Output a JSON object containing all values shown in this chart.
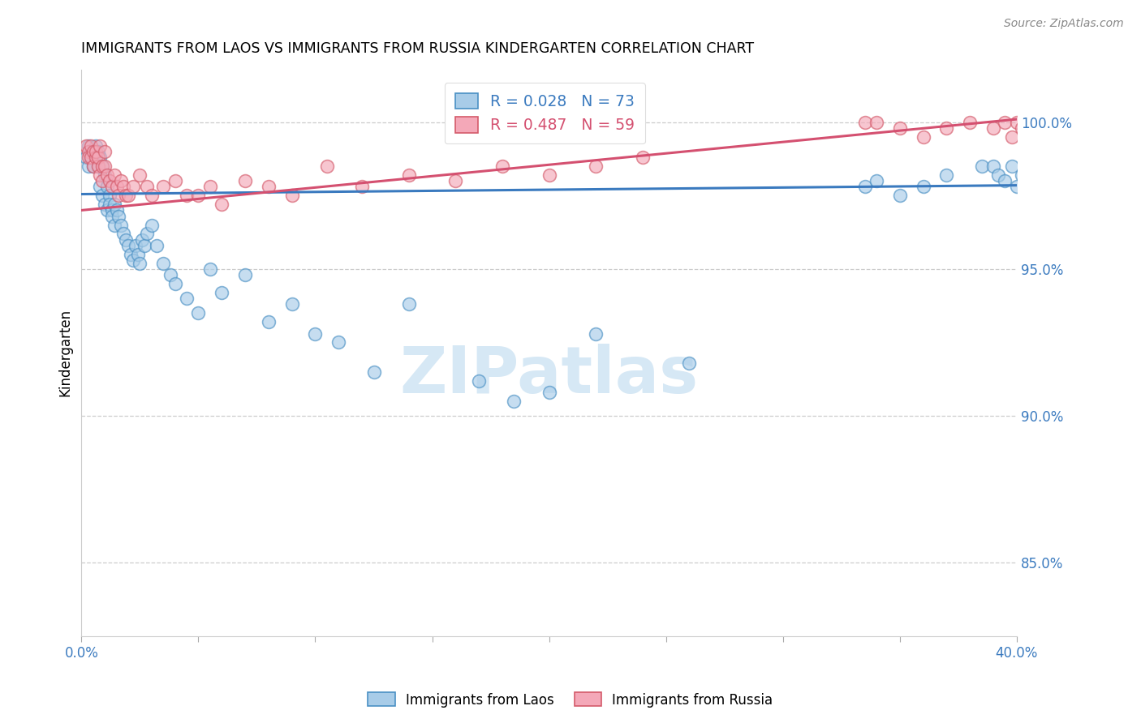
{
  "title": "IMMIGRANTS FROM LAOS VS IMMIGRANTS FROM RUSSIA KINDERGARTEN CORRELATION CHART",
  "source_text": "Source: ZipAtlas.com",
  "ylabel": "Kindergarten",
  "yticks": [
    85.0,
    90.0,
    95.0,
    100.0
  ],
  "ytick_labels": [
    "85.0%",
    "90.0%",
    "95.0%",
    "100.0%"
  ],
  "xlim": [
    0.0,
    40.0
  ],
  "ylim": [
    82.5,
    101.8
  ],
  "color_laos_fill": "#a8cce8",
  "color_laos_edge": "#4a90c4",
  "color_russia_fill": "#f4a8b8",
  "color_russia_edge": "#d45a6a",
  "color_laos_line": "#3a7abf",
  "color_russia_line": "#d45070",
  "watermark_color": "#d6e8f5",
  "legend_labels": [
    "R = 0.028   N = 73",
    "R = 0.487   N = 59"
  ],
  "legend_label_colors": [
    "#3a7abf",
    "#d45070"
  ],
  "bottom_legend": [
    "Immigrants from Laos",
    "Immigrants from Russia"
  ],
  "laos_trend": [
    97.55,
    97.85
  ],
  "russia_trend": [
    97.0,
    100.1
  ],
  "laos_x": [
    0.2,
    0.3,
    0.3,
    0.4,
    0.4,
    0.5,
    0.5,
    0.6,
    0.6,
    0.7,
    0.7,
    0.8,
    0.8,
    0.9,
    0.9,
    1.0,
    1.0,
    1.1,
    1.1,
    1.2,
    1.2,
    1.3,
    1.3,
    1.4,
    1.4,
    1.5,
    1.6,
    1.7,
    1.8,
    1.9,
    2.0,
    2.1,
    2.2,
    2.3,
    2.4,
    2.5,
    2.6,
    2.7,
    2.8,
    3.0,
    3.2,
    3.5,
    3.8,
    4.0,
    4.5,
    5.0,
    5.5,
    6.0,
    7.0,
    8.0,
    9.0,
    10.0,
    11.0,
    12.5,
    14.0,
    17.0,
    18.5,
    20.0,
    22.0,
    26.0,
    33.5,
    34.0,
    35.0,
    36.0,
    37.0,
    38.5,
    39.0,
    39.2,
    39.5,
    39.8,
    40.0,
    40.2,
    40.5
  ],
  "laos_y": [
    98.8,
    99.2,
    98.5,
    98.8,
    99.0,
    99.0,
    98.5,
    98.8,
    99.2,
    98.5,
    99.0,
    98.8,
    97.8,
    98.5,
    97.5,
    98.2,
    97.2,
    97.8,
    97.0,
    97.5,
    97.2,
    97.0,
    96.8,
    97.2,
    96.5,
    97.0,
    96.8,
    96.5,
    96.2,
    96.0,
    95.8,
    95.5,
    95.3,
    95.8,
    95.5,
    95.2,
    96.0,
    95.8,
    96.2,
    96.5,
    95.8,
    95.2,
    94.8,
    94.5,
    94.0,
    93.5,
    95.0,
    94.2,
    94.8,
    93.2,
    93.8,
    92.8,
    92.5,
    91.5,
    93.8,
    91.2,
    90.5,
    90.8,
    92.8,
    91.8,
    97.8,
    98.0,
    97.5,
    97.8,
    98.2,
    98.5,
    98.5,
    98.2,
    98.0,
    98.5,
    97.8,
    98.2,
    97.5
  ],
  "russia_x": [
    0.2,
    0.3,
    0.3,
    0.4,
    0.4,
    0.5,
    0.5,
    0.6,
    0.6,
    0.7,
    0.7,
    0.8,
    0.8,
    0.9,
    0.9,
    1.0,
    1.0,
    1.1,
    1.2,
    1.3,
    1.4,
    1.5,
    1.6,
    1.7,
    1.8,
    1.9,
    2.0,
    2.2,
    2.5,
    2.8,
    3.0,
    3.5,
    4.0,
    4.5,
    5.0,
    5.5,
    6.0,
    7.0,
    8.0,
    9.0,
    10.5,
    12.0,
    14.0,
    16.0,
    18.0,
    20.0,
    22.0,
    24.0,
    33.5,
    34.0,
    35.0,
    36.0,
    37.0,
    38.0,
    39.0,
    39.5,
    39.8,
    40.0,
    40.2
  ],
  "russia_y": [
    99.2,
    99.0,
    98.8,
    98.8,
    99.2,
    99.0,
    98.5,
    98.8,
    99.0,
    98.5,
    98.8,
    99.2,
    98.2,
    98.5,
    98.0,
    99.0,
    98.5,
    98.2,
    98.0,
    97.8,
    98.2,
    97.8,
    97.5,
    98.0,
    97.8,
    97.5,
    97.5,
    97.8,
    98.2,
    97.8,
    97.5,
    97.8,
    98.0,
    97.5,
    97.5,
    97.8,
    97.2,
    98.0,
    97.8,
    97.5,
    98.5,
    97.8,
    98.2,
    98.0,
    98.5,
    98.2,
    98.5,
    98.8,
    100.0,
    100.0,
    99.8,
    99.5,
    99.8,
    100.0,
    99.8,
    100.0,
    99.5,
    100.0,
    99.8
  ]
}
